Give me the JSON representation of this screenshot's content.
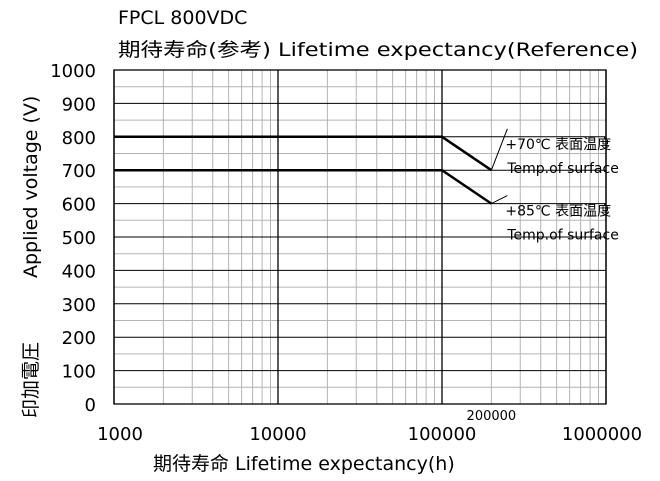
{
  "chart_data": {
    "type": "line",
    "title": "FPCL 800VDC",
    "subtitle": "期待寿命(参考) Lifetime expectancy(Reference)",
    "xlabel": "期待寿命 Lifetime expectancy(h)",
    "ylabel_en": "Applied voltage (V)",
    "ylabel_ja": "印加電圧",
    "x_scale": "log",
    "xlim": [
      1000,
      1000000
    ],
    "ylim": [
      0,
      1000
    ],
    "grid": true,
    "x_ticks": [
      "1000",
      "10000",
      "100000",
      "1000000"
    ],
    "x_extra_tick": "200000",
    "y_ticks": [
      "0",
      "100",
      "200",
      "300",
      "400",
      "500",
      "600",
      "700",
      "800",
      "900",
      "1000"
    ],
    "series": [
      {
        "name": "+70℃ 表面温度",
        "name2": "Temp.of surface",
        "x": [
          1000,
          100000,
          200000
        ],
        "y": [
          800,
          800,
          700
        ]
      },
      {
        "name": "+85℃ 表面温度",
        "name2": "Temp.of surface",
        "x": [
          1000,
          100000,
          200000
        ],
        "y": [
          700,
          700,
          600
        ]
      }
    ]
  }
}
